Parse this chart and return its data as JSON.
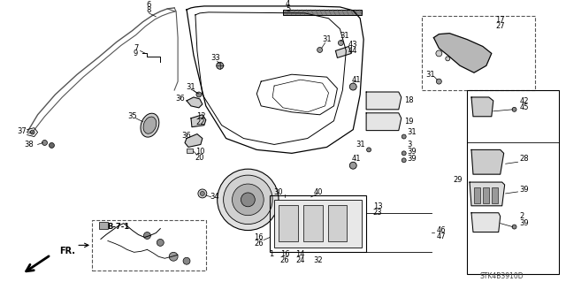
{
  "bg_color": "#ffffff",
  "fig_width": 6.4,
  "fig_height": 3.19,
  "watermark": "STK4B3910D",
  "label_fs": 6.0,
  "bold_fs": 6.5
}
